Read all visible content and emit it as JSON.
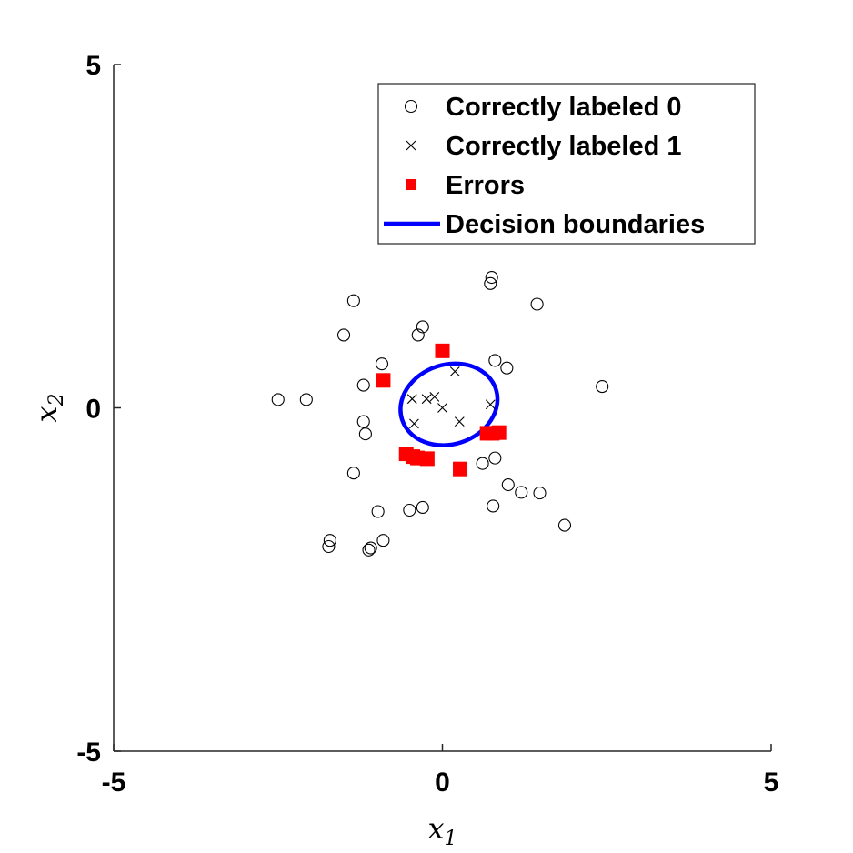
{
  "chart_data": {
    "type": "scatter",
    "xlim": [
      -5,
      5
    ],
    "ylim": [
      -5,
      5
    ],
    "xticks": [
      "-5",
      "0",
      "5"
    ],
    "yticks": [
      "-5",
      "0",
      "5"
    ],
    "xlabel": {
      "base": "x",
      "sub": "1"
    },
    "ylabel": {
      "base": "x",
      "sub": "2"
    },
    "grid": false,
    "legend_position": "top-right",
    "legend": [
      {
        "label": "Correctly labeled 0",
        "marker": "circle"
      },
      {
        "label": "Correctly labeled 1",
        "marker": "cross"
      },
      {
        "label": "Errors",
        "marker": "square"
      },
      {
        "label": "Decision boundaries",
        "marker": "line"
      }
    ],
    "series": [
      {
        "name": "Correctly labeled 0",
        "marker": "circle",
        "color": "#000000",
        "points": [
          [
            0.75,
            1.9
          ],
          [
            0.73,
            1.81
          ],
          [
            1.44,
            1.51
          ],
          [
            -1.35,
            1.56
          ],
          [
            -0.3,
            1.18
          ],
          [
            -0.37,
            1.06
          ],
          [
            -1.5,
            1.06
          ],
          [
            -0.92,
            0.64
          ],
          [
            0.8,
            0.69
          ],
          [
            0.98,
            0.58
          ],
          [
            -1.2,
            0.33
          ],
          [
            2.43,
            0.31
          ],
          [
            -2.5,
            0.12
          ],
          [
            -2.07,
            0.12
          ],
          [
            -1.2,
            -0.2
          ],
          [
            -1.17,
            -0.38
          ],
          [
            0.8,
            -0.73
          ],
          [
            0.61,
            -0.81
          ],
          [
            -1.35,
            -0.95
          ],
          [
            1.0,
            -1.12
          ],
          [
            1.2,
            -1.23
          ],
          [
            1.48,
            -1.24
          ],
          [
            -0.3,
            -1.45
          ],
          [
            -0.5,
            -1.49
          ],
          [
            -0.98,
            -1.51
          ],
          [
            0.77,
            -1.43
          ],
          [
            1.86,
            -1.71
          ],
          [
            -1.71,
            -1.93
          ],
          [
            -1.73,
            -2.02
          ],
          [
            -0.9,
            -1.93
          ],
          [
            -1.09,
            -2.04
          ],
          [
            -1.12,
            -2.07
          ]
        ]
      },
      {
        "name": "Correctly labeled 1",
        "marker": "cross",
        "color": "#000000",
        "points": [
          [
            0.19,
            0.53
          ],
          [
            -0.46,
            0.13
          ],
          [
            -0.24,
            0.13
          ],
          [
            -0.12,
            0.16
          ],
          [
            0.0,
            0.0
          ],
          [
            0.73,
            0.05
          ],
          [
            -0.43,
            -0.23
          ],
          [
            0.26,
            -0.2
          ]
        ]
      },
      {
        "name": "Errors",
        "marker": "square",
        "color": "#ff0000",
        "points": [
          [
            0.0,
            0.83
          ],
          [
            -0.9,
            0.4
          ],
          [
            0.68,
            -0.37
          ],
          [
            0.76,
            -0.37
          ],
          [
            0.86,
            -0.36
          ],
          [
            -0.55,
            -0.67
          ],
          [
            -0.45,
            -0.71
          ],
          [
            -0.38,
            -0.73
          ],
          [
            -0.23,
            -0.74
          ],
          [
            0.27,
            -0.89
          ]
        ]
      },
      {
        "name": "Decision boundaries",
        "marker": "line",
        "color": "#0000ff",
        "ellipse": {
          "center": [
            0.1,
            0.05
          ],
          "rx": 0.75,
          "ry": 0.58
        }
      }
    ]
  }
}
